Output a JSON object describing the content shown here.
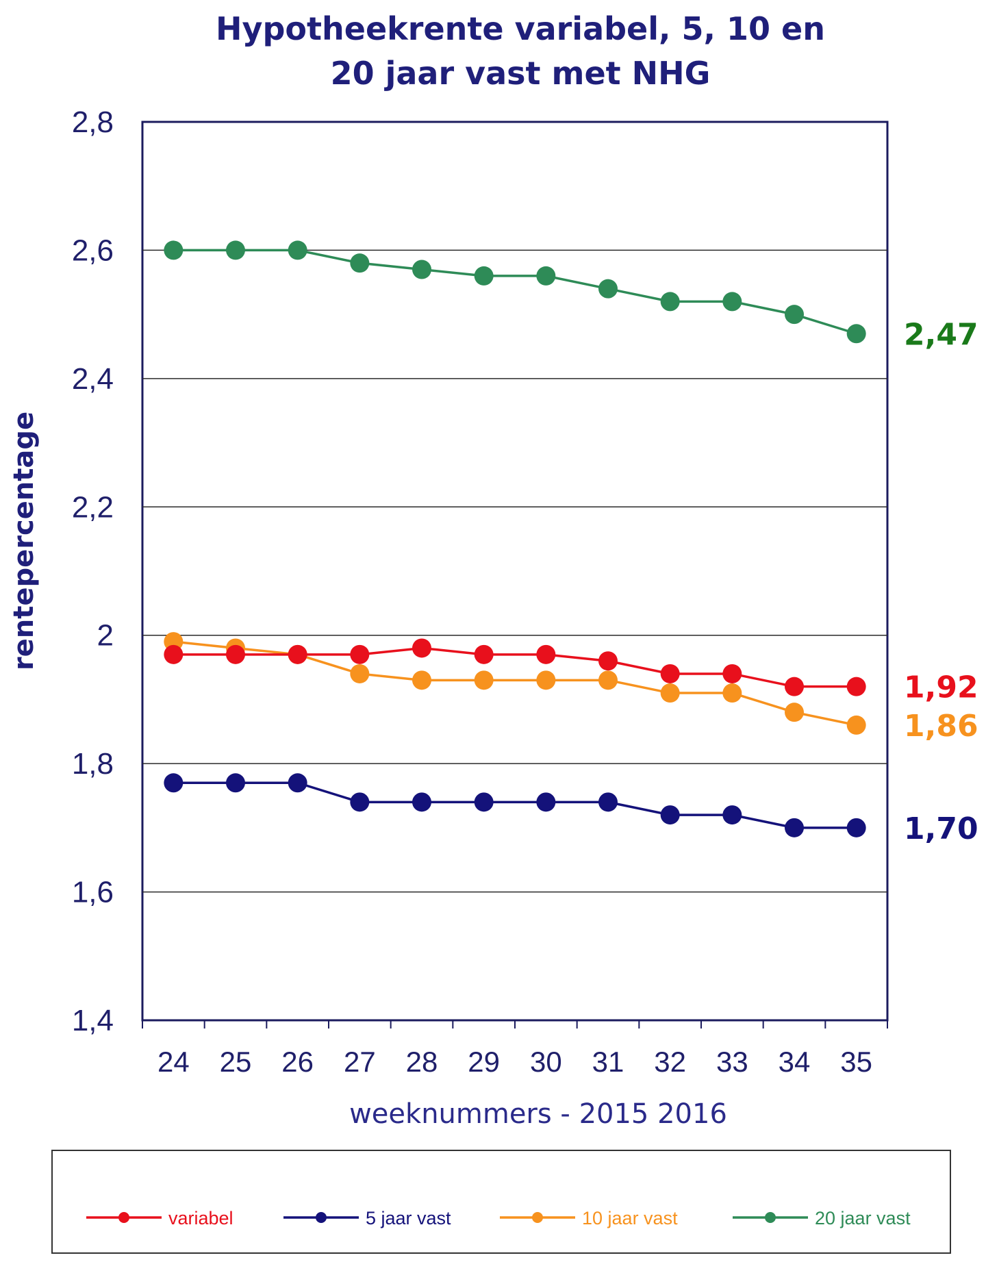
{
  "chart_data": {
    "type": "line",
    "title": [
      "Hypotheekrente variabel, 5, 10 en",
      "20 jaar vast met NHG"
    ],
    "xlabel": "weeknummers - 2015 2016",
    "ylabel": "rentepercentage",
    "x": [
      "24",
      "25",
      "26",
      "27",
      "28",
      "29",
      "30",
      "31",
      "32",
      "33",
      "34",
      "35"
    ],
    "ylim": [
      1.4,
      2.8
    ],
    "yticks": [
      "1,4",
      "1,6",
      "1,8",
      "2",
      "2,2",
      "2,4",
      "2,6",
      "2,8"
    ],
    "ytick_values": [
      1.4,
      1.6,
      1.8,
      2.0,
      2.2,
      2.4,
      2.6,
      2.8
    ],
    "grid": "horizontal",
    "legend_position": "bottom",
    "series": [
      {
        "name": "variabel",
        "color": "#e8101c",
        "values": [
          1.97,
          1.97,
          1.97,
          1.97,
          1.98,
          1.97,
          1.97,
          1.96,
          1.94,
          1.94,
          1.92,
          1.92
        ],
        "end_label": "1,92"
      },
      {
        "name": "5 jaar vast",
        "color": "#14127a",
        "values": [
          1.77,
          1.77,
          1.77,
          1.74,
          1.74,
          1.74,
          1.74,
          1.74,
          1.72,
          1.72,
          1.7,
          1.7
        ],
        "end_label": "1,70"
      },
      {
        "name": "10 jaar vast",
        "color": "#f7921e",
        "values": [
          1.99,
          1.98,
          1.97,
          1.94,
          1.93,
          1.93,
          1.93,
          1.93,
          1.91,
          1.91,
          1.88,
          1.86
        ],
        "end_label": "1,86"
      },
      {
        "name": "20 jaar vast",
        "color": "#2e8b57",
        "values": [
          2.6,
          2.6,
          2.6,
          2.58,
          2.57,
          2.56,
          2.56,
          2.54,
          2.52,
          2.52,
          2.5,
          2.47
        ],
        "end_label": "2,47",
        "end_label_color": "#1a7a1a"
      }
    ]
  }
}
